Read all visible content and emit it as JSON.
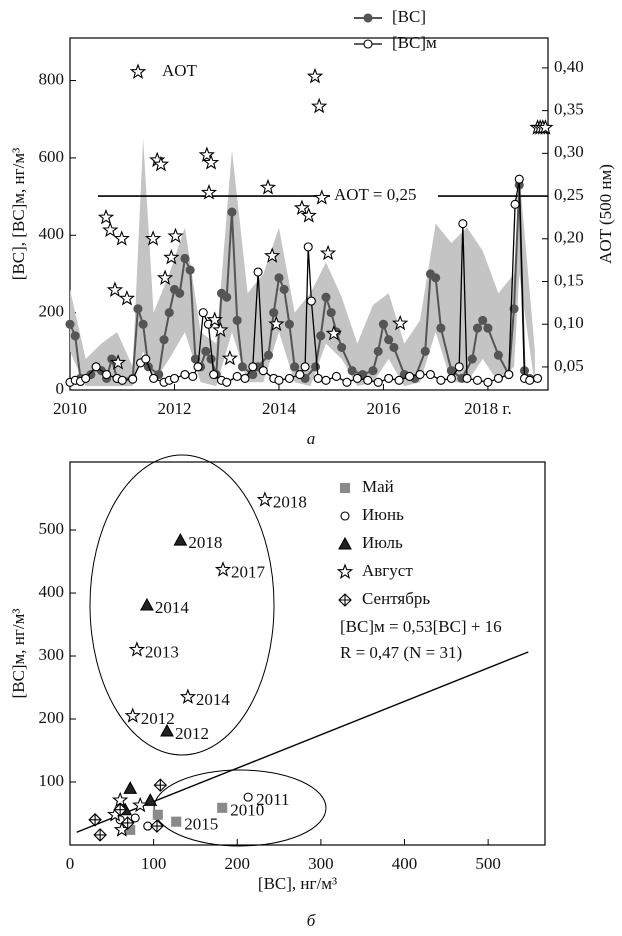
{
  "chart_data": [
    {
      "type": "line",
      "xlim": [
        2010,
        2019.15
      ],
      "xticks": [
        2010,
        2012,
        2014,
        2016,
        {
          "value": 2018,
          "label": "2018 г."
        }
      ],
      "ylim": [
        0,
        910
      ],
      "yticks": [
        0,
        200,
        400,
        600,
        800
      ],
      "y2lim": [
        0.023,
        0.435
      ],
      "y2ticks": [
        {
          "value": 0.05,
          "label": "0,05"
        },
        {
          "value": 0.1,
          "label": "0,10"
        },
        {
          "value": 0.15,
          "label": "0,15"
        },
        {
          "value": 0.2,
          "label": "0,20"
        },
        {
          "value": 0.25,
          "label": "0,25"
        },
        {
          "value": 0.3,
          "label": "0,30"
        },
        {
          "value": 0.35,
          "label": "0,35"
        },
        {
          "value": 0.4,
          "label": "0,40"
        }
      ],
      "ylabel": "[BC], [BC]м, нг/м³",
      "y2label": "AOT (500 нм)",
      "caption": "а",
      "legend": "upper right",
      "band": {
        "color": "#c4c4c4",
        "x": [
          2010.0,
          2010.3,
          2010.6,
          2010.9,
          2011.2,
          2011.4,
          2011.6,
          2011.9,
          2012.2,
          2012.5,
          2012.8,
          2013.1,
          2013.4,
          2013.7,
          2014.0,
          2014.3,
          2014.6,
          2014.9,
          2015.2,
          2015.5,
          2015.8,
          2016.1,
          2016.4,
          2016.7,
          2017.0,
          2017.3,
          2017.6,
          2017.9,
          2018.2,
          2018.5,
          2018.6,
          2018.9
        ],
        "upper": [
          260,
          80,
          120,
          150,
          60,
          650,
          200,
          300,
          420,
          150,
          120,
          620,
          250,
          300,
          420,
          200,
          250,
          330,
          240,
          120,
          220,
          250,
          120,
          180,
          430,
          380,
          420,
          360,
          250,
          300,
          560,
          100
        ],
        "lower": [
          100,
          10,
          10,
          10,
          10,
          100,
          20,
          80,
          150,
          20,
          10,
          150,
          20,
          20,
          150,
          20,
          10,
          120,
          80,
          10,
          20,
          80,
          10,
          20,
          150,
          20,
          20,
          80,
          20,
          60,
          300,
          10
        ]
      },
      "series": [
        {
          "name": "[BC]",
          "color": "#555555",
          "marker": "filled",
          "x": [
            2010.0,
            2010.1,
            2010.2,
            2010.4,
            2010.5,
            2010.6,
            2010.7,
            2010.8,
            2010.9,
            2011.2,
            2011.3,
            2011.4,
            2011.5,
            2011.7,
            2011.8,
            2011.9,
            2012.0,
            2012.1,
            2012.2,
            2012.3,
            2012.4,
            2012.5,
            2012.6,
            2012.7,
            2012.8,
            2012.9,
            2013.0,
            2013.1,
            2013.2,
            2013.3,
            2013.5,
            2013.6,
            2013.8,
            2013.9,
            2014.0,
            2014.1,
            2014.2,
            2014.3,
            2014.5,
            2014.7,
            2014.8,
            2014.9,
            2015.0,
            2015.1,
            2015.2,
            2015.4,
            2015.6,
            2015.8,
            2015.9,
            2016.0,
            2016.1,
            2016.2,
            2016.4,
            2016.6,
            2016.8,
            2016.9,
            2017.0,
            2017.1,
            2017.3,
            2017.5,
            2017.7,
            2017.8,
            2017.9,
            2018.0,
            2018.2,
            2018.4,
            2018.5,
            2018.6,
            2018.7,
            2018.8
          ],
          "values": [
            170,
            140,
            30,
            40,
            60,
            50,
            30,
            80,
            30,
            30,
            210,
            170,
            60,
            40,
            130,
            200,
            260,
            250,
            340,
            310,
            80,
            60,
            100,
            80,
            40,
            250,
            240,
            460,
            180,
            60,
            40,
            60,
            90,
            200,
            290,
            260,
            170,
            60,
            30,
            60,
            140,
            240,
            200,
            150,
            110,
            50,
            40,
            50,
            100,
            170,
            130,
            110,
            40,
            30,
            100,
            300,
            290,
            160,
            50,
            30,
            80,
            160,
            180,
            160,
            90,
            40,
            210,
            530,
            50,
            30
          ]
        },
        {
          "name": "[BC]м",
          "color": "#000000",
          "marker": "open",
          "x": [
            2010.0,
            2010.1,
            2010.2,
            2010.3,
            2010.5,
            2010.7,
            2010.9,
            2011.0,
            2011.2,
            2011.35,
            2011.45,
            2011.6,
            2011.8,
            2011.9,
            2012.0,
            2012.2,
            2012.35,
            2012.45,
            2012.55,
            2012.65,
            2012.75,
            2012.9,
            2013.0,
            2013.2,
            2013.35,
            2013.5,
            2013.6,
            2013.7,
            2013.9,
            2014.0,
            2014.2,
            2014.4,
            2014.5,
            2014.56,
            2014.62,
            2014.75,
            2014.9,
            2015.1,
            2015.3,
            2015.5,
            2015.7,
            2015.9,
            2016.1,
            2016.3,
            2016.5,
            2016.7,
            2016.9,
            2017.1,
            2017.3,
            2017.45,
            2017.52,
            2017.6,
            2017.8,
            2018.0,
            2018.2,
            2018.4,
            2018.52,
            2018.6,
            2018.7,
            2018.8,
            2018.95
          ],
          "values": [
            20,
            25,
            22,
            30,
            60,
            40,
            30,
            25,
            28,
            70,
            80,
            30,
            20,
            25,
            30,
            40,
            35,
            60,
            200,
            170,
            40,
            25,
            20,
            35,
            30,
            60,
            305,
            50,
            30,
            25,
            30,
            40,
            60,
            370,
            230,
            30,
            25,
            35,
            20,
            30,
            25,
            20,
            30,
            25,
            35,
            40,
            40,
            25,
            30,
            60,
            430,
            30,
            25,
            20,
            30,
            40,
            480,
            545,
            30,
            25,
            30
          ]
        },
        {
          "name": "AOT",
          "color": "#000000",
          "marker": "star",
          "axis": "y2",
          "line": false,
          "x": [
            2010.69,
            2010.77,
            2010.86,
            2010.92,
            2010.99,
            2011.09,
            2011.59,
            2011.67,
            2011.74,
            2011.82,
            2011.94,
            2012.02,
            2012.62,
            2012.7,
            2012.66,
            2012.77,
            2012.88,
            2013.06,
            2013.79,
            2013.87,
            2013.95,
            2014.44,
            2014.57,
            2014.69,
            2014.77,
            2014.82,
            2014.94,
            2015.05,
            2016.32,
            2018.95,
            2019.0,
            2019.05,
            2019.1
          ],
          "values": [
            0.225,
            0.21,
            0.14,
            0.055,
            0.2,
            0.13,
            0.2,
            0.292,
            0.287,
            0.154,
            0.178,
            0.203,
            0.298,
            0.289,
            0.254,
            0.105,
            0.093,
            0.06,
            0.26,
            0.18,
            0.1,
            0.236,
            0.227,
            0.39,
            0.355,
            0.248,
            0.183,
            0.089,
            0.101,
            0.33,
            0.33,
            0.33,
            0.33
          ]
        }
      ],
      "hlines": [
        {
          "value": 0.25,
          "axis": "y2",
          "label": "AOT = 0,25"
        }
      ]
    },
    {
      "type": "scatter",
      "xlim": [
        0,
        568
      ],
      "xticks": [
        0,
        100,
        200,
        300,
        400,
        500
      ],
      "ylim": [
        0,
        608
      ],
      "yticks": [
        100,
        200,
        300,
        400,
        500
      ],
      "xlabel": "[BC], нг/м³",
      "ylabel": "[BC]м, нг/м³",
      "caption": "б",
      "legend": "upper right",
      "series": [
        {
          "name": "Май",
          "marker": "square",
          "color": "#8a8a8a",
          "x": [
            182,
            127,
            105,
            72
          ],
          "values": [
            59,
            37,
            48,
            24
          ],
          "labels": [
            "2010",
            "2015",
            null,
            null
          ]
        },
        {
          "name": "Июнь",
          "marker": "open",
          "color": "#ffffff",
          "x": [
            213,
            78,
            93,
            60
          ],
          "values": [
            76,
            43,
            30,
            40
          ],
          "labels": [
            "2011",
            null,
            null,
            null
          ]
        },
        {
          "name": "Июль",
          "marker": "triangle",
          "color": "#222222",
          "x": [
            132,
            92,
            116,
            72,
            96,
            66
          ],
          "values": [
            484,
            381,
            181,
            90,
            71,
            56
          ],
          "labels": [
            "2018",
            "2014",
            "2012",
            null,
            null,
            null
          ]
        },
        {
          "name": "Август",
          "marker": "star",
          "color": "#ffffff",
          "x": [
            233,
            183,
            80,
            141,
            75,
            60,
            54,
            62,
            84
          ],
          "values": [
            548,
            437,
            310,
            235,
            205,
            71,
            48,
            24,
            63
          ],
          "labels": [
            "2018",
            "2017",
            "2013",
            "2014",
            "2012",
            null,
            null,
            null,
            null
          ]
        },
        {
          "name": "Сентябрь",
          "marker": "diamond",
          "color": "#ffffff",
          "x": [
            108,
            69,
            36,
            30,
            104,
            60
          ],
          "values": [
            95,
            35,
            16,
            40,
            30,
            56
          ],
          "labels": [
            null,
            null,
            null,
            null,
            null,
            null
          ]
        }
      ],
      "fit": {
        "slope": 0.53,
        "intercept": 16,
        "label": "[BC]м = 0,53[BC] + 16"
      },
      "annotations": [
        "R = 0,47 (N = 31)"
      ]
    }
  ]
}
